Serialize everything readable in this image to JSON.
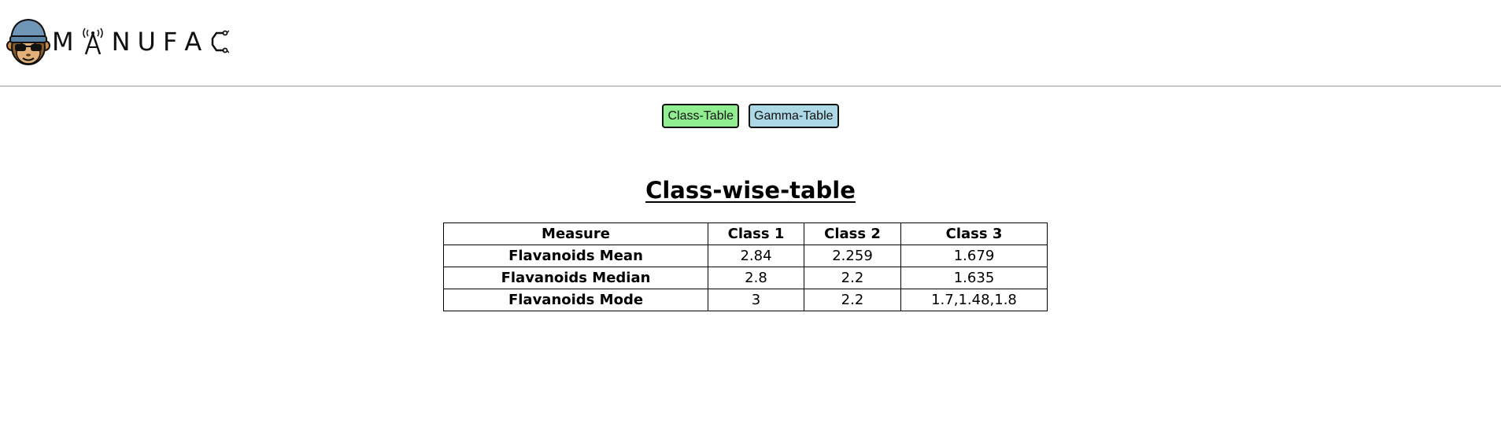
{
  "header": {
    "logo_text": [
      "M",
      "N",
      "U",
      "F",
      "A"
    ],
    "logo_alt": "MANUFAC"
  },
  "buttons": {
    "class_table_label": "Class-Table",
    "gamma_table_label": "Gamma-Table"
  },
  "main": {
    "title": "Class-wise-table",
    "table": {
      "headers": [
        "Measure",
        "Class 1",
        "Class 2",
        "Class 3"
      ],
      "rows": [
        [
          "Flavanoids Mean",
          "2.84",
          "2.259",
          "1.679"
        ],
        [
          "Flavanoids Median",
          "2.8",
          "2.2",
          "1.635"
        ],
        [
          "Flavanoids Mode",
          "3",
          "2.2",
          "1.7,1.48,1.8"
        ]
      ]
    }
  },
  "colors": {
    "class_button_bg": "#90ee90",
    "gamma_button_bg": "#add8e6",
    "divider": "#9a9a9a"
  }
}
